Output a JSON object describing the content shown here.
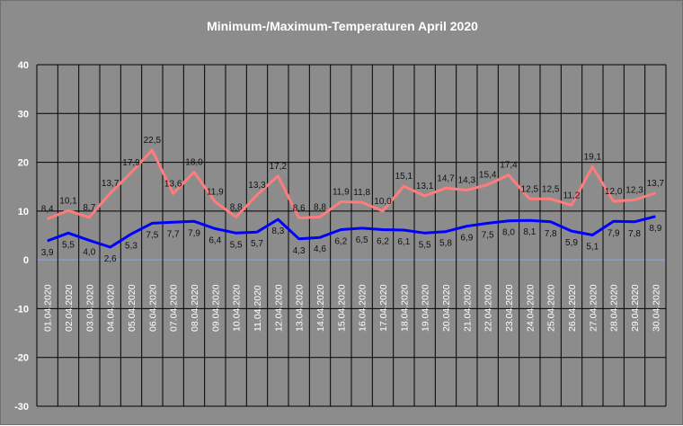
{
  "chart_data": {
    "type": "line",
    "title": "Minimum-/Maximum-Temperaturen April 2020",
    "xlabel": "",
    "ylabel": "",
    "ylim": [
      -30,
      40
    ],
    "yticks": [
      40,
      30,
      20,
      10,
      0,
      -10,
      -20,
      -30
    ],
    "grid": true,
    "legend": "none",
    "categories": [
      "01.04.2020",
      "02.04.2020",
      "03.04.2020",
      "04.04.2020",
      "05.04.2020",
      "06.04.2020",
      "07.04.2020",
      "08.04.2020",
      "09.04.2020",
      "10.04.2020",
      "11.04.2020",
      "12.04.2020",
      "13.04.2020",
      "14.04.2020",
      "15.04.2020",
      "16.04.2020",
      "17.04.2020",
      "18.04.2020",
      "19.04.2020",
      "20.04.2020",
      "21.04.2020",
      "22.04.2020",
      "23.04.2020",
      "24.04.2020",
      "25.04.2020",
      "26.04.2020",
      "27.04.2020",
      "28.04.2020",
      "29.04.2020",
      "30.04.2020"
    ],
    "series": [
      {
        "color": "#ff7c7c",
        "values": [
          8.4,
          10.1,
          8.7,
          13.7,
          17.9,
          22.5,
          13.6,
          18.0,
          11.9,
          8.8,
          13.3,
          17.2,
          8.6,
          8.8,
          11.9,
          11.8,
          10.0,
          15.1,
          13.1,
          14.7,
          14.3,
          15.4,
          17.4,
          12.5,
          12.5,
          11.2,
          19.1,
          12.0,
          12.3,
          13.7
        ],
        "labels": [
          "8,4",
          "10,1",
          "8,7",
          "13,7",
          "17,9",
          "22,5",
          "13,6",
          "18,0",
          "11,9",
          "8,8",
          "13,3",
          "17,2",
          "8,6",
          "8,8",
          "11,9",
          "11,8",
          "10,0",
          "15,1",
          "13,1",
          "14,7",
          "14,3",
          "15,4",
          "17,4",
          "12,5",
          "12,5",
          "11,2",
          "19,1",
          "12,0",
          "12,3",
          "13,7"
        ]
      },
      {
        "color": "#0000ff",
        "values": [
          3.9,
          5.5,
          4.0,
          2.6,
          5.3,
          7.5,
          7.7,
          7.9,
          6.4,
          5.5,
          5.7,
          8.3,
          4.3,
          4.6,
          6.2,
          6.5,
          6.2,
          6.1,
          5.5,
          5.8,
          6.9,
          7.5,
          8.0,
          8.1,
          7.8,
          5.9,
          5.1,
          7.9,
          7.8,
          8.9
        ],
        "labels": [
          "3,9",
          "5,5",
          "4,0",
          "2,6",
          "5,3",
          "7,5",
          "7,7",
          "7,9",
          "6,4",
          "5,5",
          "5,7",
          "8,3",
          "4,3",
          "4,6",
          "6,2",
          "6,5",
          "6,2",
          "6,1",
          "5,5",
          "5,8",
          "6,9",
          "7,5",
          "8,0",
          "8,1",
          "7,8",
          "5,9",
          "5,1",
          "7,9",
          "7,8",
          "8,9"
        ]
      }
    ],
    "colors": {
      "background": "#8c8c8c",
      "gridline": "#000000",
      "zero_line": "#7fa8ff",
      "text": "#ffffff"
    }
  }
}
